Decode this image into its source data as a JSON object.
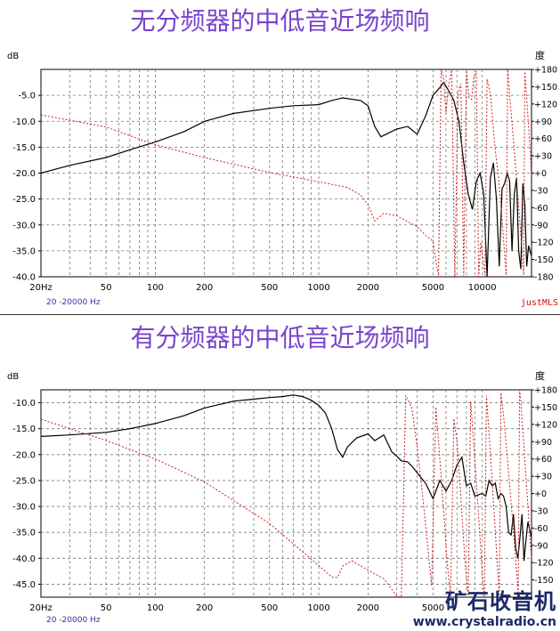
{
  "chart_data": [
    {
      "type": "line",
      "title": "无分频器的中低音近场频响",
      "xscale": "log",
      "xlim": [
        20,
        20000
      ],
      "ylabel": "dB",
      "y2label": "度",
      "ylim": [
        -40,
        0
      ],
      "y2lim": [
        -180,
        180
      ],
      "yticks": [
        -5.0,
        -10.0,
        -15.0,
        -20.0,
        -25.0,
        -30.0,
        -35.0,
        -40.0
      ],
      "y2ticks": [
        "+180",
        "+150",
        "+120",
        "+90",
        "+60",
        "+30",
        "+0",
        "-30",
        "-60",
        "-90",
        "-120",
        "-150",
        "-180"
      ],
      "xticks": [
        "20Hz",
        "50",
        "100",
        "200",
        "500",
        "1000",
        "2000",
        "5000",
        "10000"
      ],
      "freq_range_label": "20 -20000 Hz",
      "brand": "justMLS",
      "grid": true,
      "series": [
        {
          "kind": "magnitude",
          "color": "#000000",
          "x": [
            20,
            30,
            50,
            70,
            100,
            150,
            200,
            300,
            500,
            700,
            1000,
            1200,
            1400,
            1800,
            2000,
            2200,
            2400,
            2700,
            3000,
            3500,
            4000,
            4500,
            5000,
            5500,
            5800,
            6200,
            6700,
            7200,
            7700,
            8200,
            8700,
            9200,
            9700,
            10200,
            10700,
            11200,
            11700,
            12200,
            12700,
            13200,
            13700,
            14200,
            14700,
            15200,
            15700,
            16200,
            16700,
            17200,
            17700,
            18200,
            18700,
            19200,
            20000
          ],
          "y": [
            -20,
            -18.5,
            -17,
            -15.5,
            -14,
            -12,
            -10,
            -8.5,
            -7.5,
            -7,
            -6.8,
            -6,
            -5.5,
            -6,
            -7,
            -11,
            -13,
            -12.2,
            -11.5,
            -11,
            -12.5,
            -9,
            -5,
            -3.5,
            -2.5,
            -4,
            -6,
            -10,
            -18,
            -24,
            -27,
            -21.5,
            -20,
            -24,
            -40,
            -21,
            -18,
            -25,
            -38,
            -23,
            -22,
            -20,
            -21.5,
            -35,
            -24,
            -21,
            -35,
            -38.5,
            -22,
            -26,
            -38,
            -34,
            -36
          ]
        },
        {
          "kind": "phase",
          "color": "#cc2222",
          "x": [
            20,
            50,
            100,
            200,
            500,
            1000,
            1500,
            1800,
            2000,
            2200,
            2500,
            3000,
            4000,
            4500,
            5000,
            5200,
            5400,
            5600,
            5800,
            6000,
            6200,
            6500,
            6800,
            7100,
            7400,
            7700,
            8000,
            8300,
            8600,
            8900,
            9200,
            9500,
            9800,
            10100,
            10400,
            10700,
            11000,
            11300,
            11600,
            11900,
            12200,
            12500,
            12800,
            13100,
            13400,
            13700,
            14000,
            14300,
            14600,
            14900,
            15200,
            15500,
            15800,
            16100,
            16400,
            16700,
            17000,
            17300,
            17600,
            17900,
            18200,
            18500,
            18800,
            19100,
            19400,
            19700,
            20000
          ],
          "y": [
            101,
            80,
            49,
            27,
            1,
            -15,
            -25,
            -38,
            -54,
            -83,
            -70,
            -74,
            -93,
            -108,
            -118,
            -152,
            -178,
            180,
            165,
            102,
            150,
            179,
            -180,
            139,
            155,
            -178,
            178,
            131,
            128,
            168,
            177,
            -180,
            -120,
            -150,
            -178,
            163,
            150,
            126,
            90,
            52,
            22,
            0,
            -34,
            -66,
            -105,
            -141,
            -177,
            180,
            147,
            115,
            87,
            57,
            28,
            0,
            -30,
            -60,
            -86,
            -115,
            -145,
            -177,
            176,
            148,
            119,
            90,
            60,
            30,
            -10
          ]
        }
      ]
    },
    {
      "type": "line",
      "title": "有分频器的中低音近场频响",
      "xscale": "log",
      "xlim": [
        20,
        20000
      ],
      "ylabel": "dB",
      "y2label": "度",
      "ylim": [
        -47.5,
        -7.5
      ],
      "y2lim": [
        -180,
        180
      ],
      "yticks": [
        -10.0,
        -15.0,
        -20.0,
        -25.0,
        -30.0,
        -35.0,
        -40.0,
        -45.0
      ],
      "y2ticks": [
        "+180",
        "+150",
        "+120",
        "+90",
        "+60",
        "+30",
        "+0",
        "-30",
        "-60",
        "-90",
        "-120",
        "-150"
      ],
      "xticks": [
        "20Hz",
        "50",
        "100",
        "200",
        "500",
        "1000",
        "2000",
        "5000"
      ],
      "freq_range_label": "20 -20000 Hz",
      "grid": true,
      "series": [
        {
          "kind": "magnitude",
          "color": "#000000",
          "x": [
            20,
            30,
            50,
            70,
            100,
            150,
            200,
            300,
            400,
            500,
            600,
            700,
            800,
            900,
            1000,
            1100,
            1200,
            1300,
            1400,
            1500,
            1700,
            2000,
            2200,
            2500,
            2800,
            3000,
            3200,
            3500,
            3800,
            4000,
            4500,
            5000,
            5500,
            6000,
            6500,
            7000,
            7500,
            8000,
            8500,
            9000,
            10000,
            10500,
            11000,
            11500,
            12000,
            12500,
            13000,
            13500,
            14000,
            14500,
            15000,
            15500,
            16000,
            16500,
            17000,
            17500,
            18000,
            18500,
            19000,
            20000
          ],
          "y": [
            -16.5,
            -16.2,
            -15.7,
            -15,
            -14,
            -12.5,
            -11,
            -9.7,
            -9.3,
            -9,
            -8.8,
            -8.5,
            -8.8,
            -9.5,
            -10.5,
            -12,
            -15,
            -19,
            -20.5,
            -18.5,
            -16.8,
            -16,
            -17.3,
            -16.2,
            -19.5,
            -20.3,
            -21.2,
            -21.4,
            -22.6,
            -23.5,
            -25.5,
            -28.5,
            -25,
            -27,
            -25,
            -22,
            -20.5,
            -26,
            -25.5,
            -28,
            -27.5,
            -28,
            -25,
            -26,
            -25.5,
            -28.5,
            -27.5,
            -28,
            -30,
            -35,
            -35.5,
            -31.5,
            -38,
            -40,
            -36,
            -31.5,
            -40.5,
            -36.5,
            -33,
            -36
          ]
        },
        {
          "kind": "phase",
          "color": "#cc2222",
          "x": [
            20,
            50,
            100,
            200,
            500,
            1000,
            1200,
            1300,
            1400,
            1600,
            2000,
            2500,
            3000,
            3200,
            3400,
            3700,
            4000,
            4300,
            4600,
            4900,
            5200,
            5500,
            5800,
            6100,
            6400,
            6700,
            7000,
            7300,
            7600,
            7900,
            8200,
            8500,
            8800,
            9100,
            9400,
            9700,
            10000,
            10300,
            10600,
            10900,
            11200,
            11500,
            11800,
            12100,
            12400,
            12700,
            13000,
            13300,
            13600,
            13900,
            14200,
            14500,
            14800,
            15100,
            15400,
            15700,
            16000,
            16300,
            16600,
            16900,
            17200,
            17500,
            17800,
            18100,
            18400,
            18700,
            19000,
            19300,
            19600,
            20000
          ],
          "y": [
            129,
            92,
            60,
            20,
            -52,
            -125,
            -145,
            -146,
            -126,
            -117,
            -133,
            -148,
            -178,
            -180,
            170,
            150,
            80,
            0,
            -82,
            -160,
            150,
            60,
            -30,
            -120,
            -178,
            130,
            90,
            20,
            -60,
            -130,
            -178,
            160,
            100,
            40,
            -20,
            -80,
            -140,
            -180,
            170,
            120,
            70,
            20,
            -30,
            -80,
            -130,
            -178,
            175,
            150,
            125,
            95,
            65,
            35,
            5,
            -25,
            -55,
            -85,
            -115,
            -145,
            -175,
            180,
            160,
            130,
            100,
            70,
            40,
            10,
            -20,
            -50,
            -80,
            -110
          ]
        }
      ]
    }
  ],
  "watermark": {
    "name": "矿石收音机",
    "url": "www.crystalradio.cn"
  }
}
